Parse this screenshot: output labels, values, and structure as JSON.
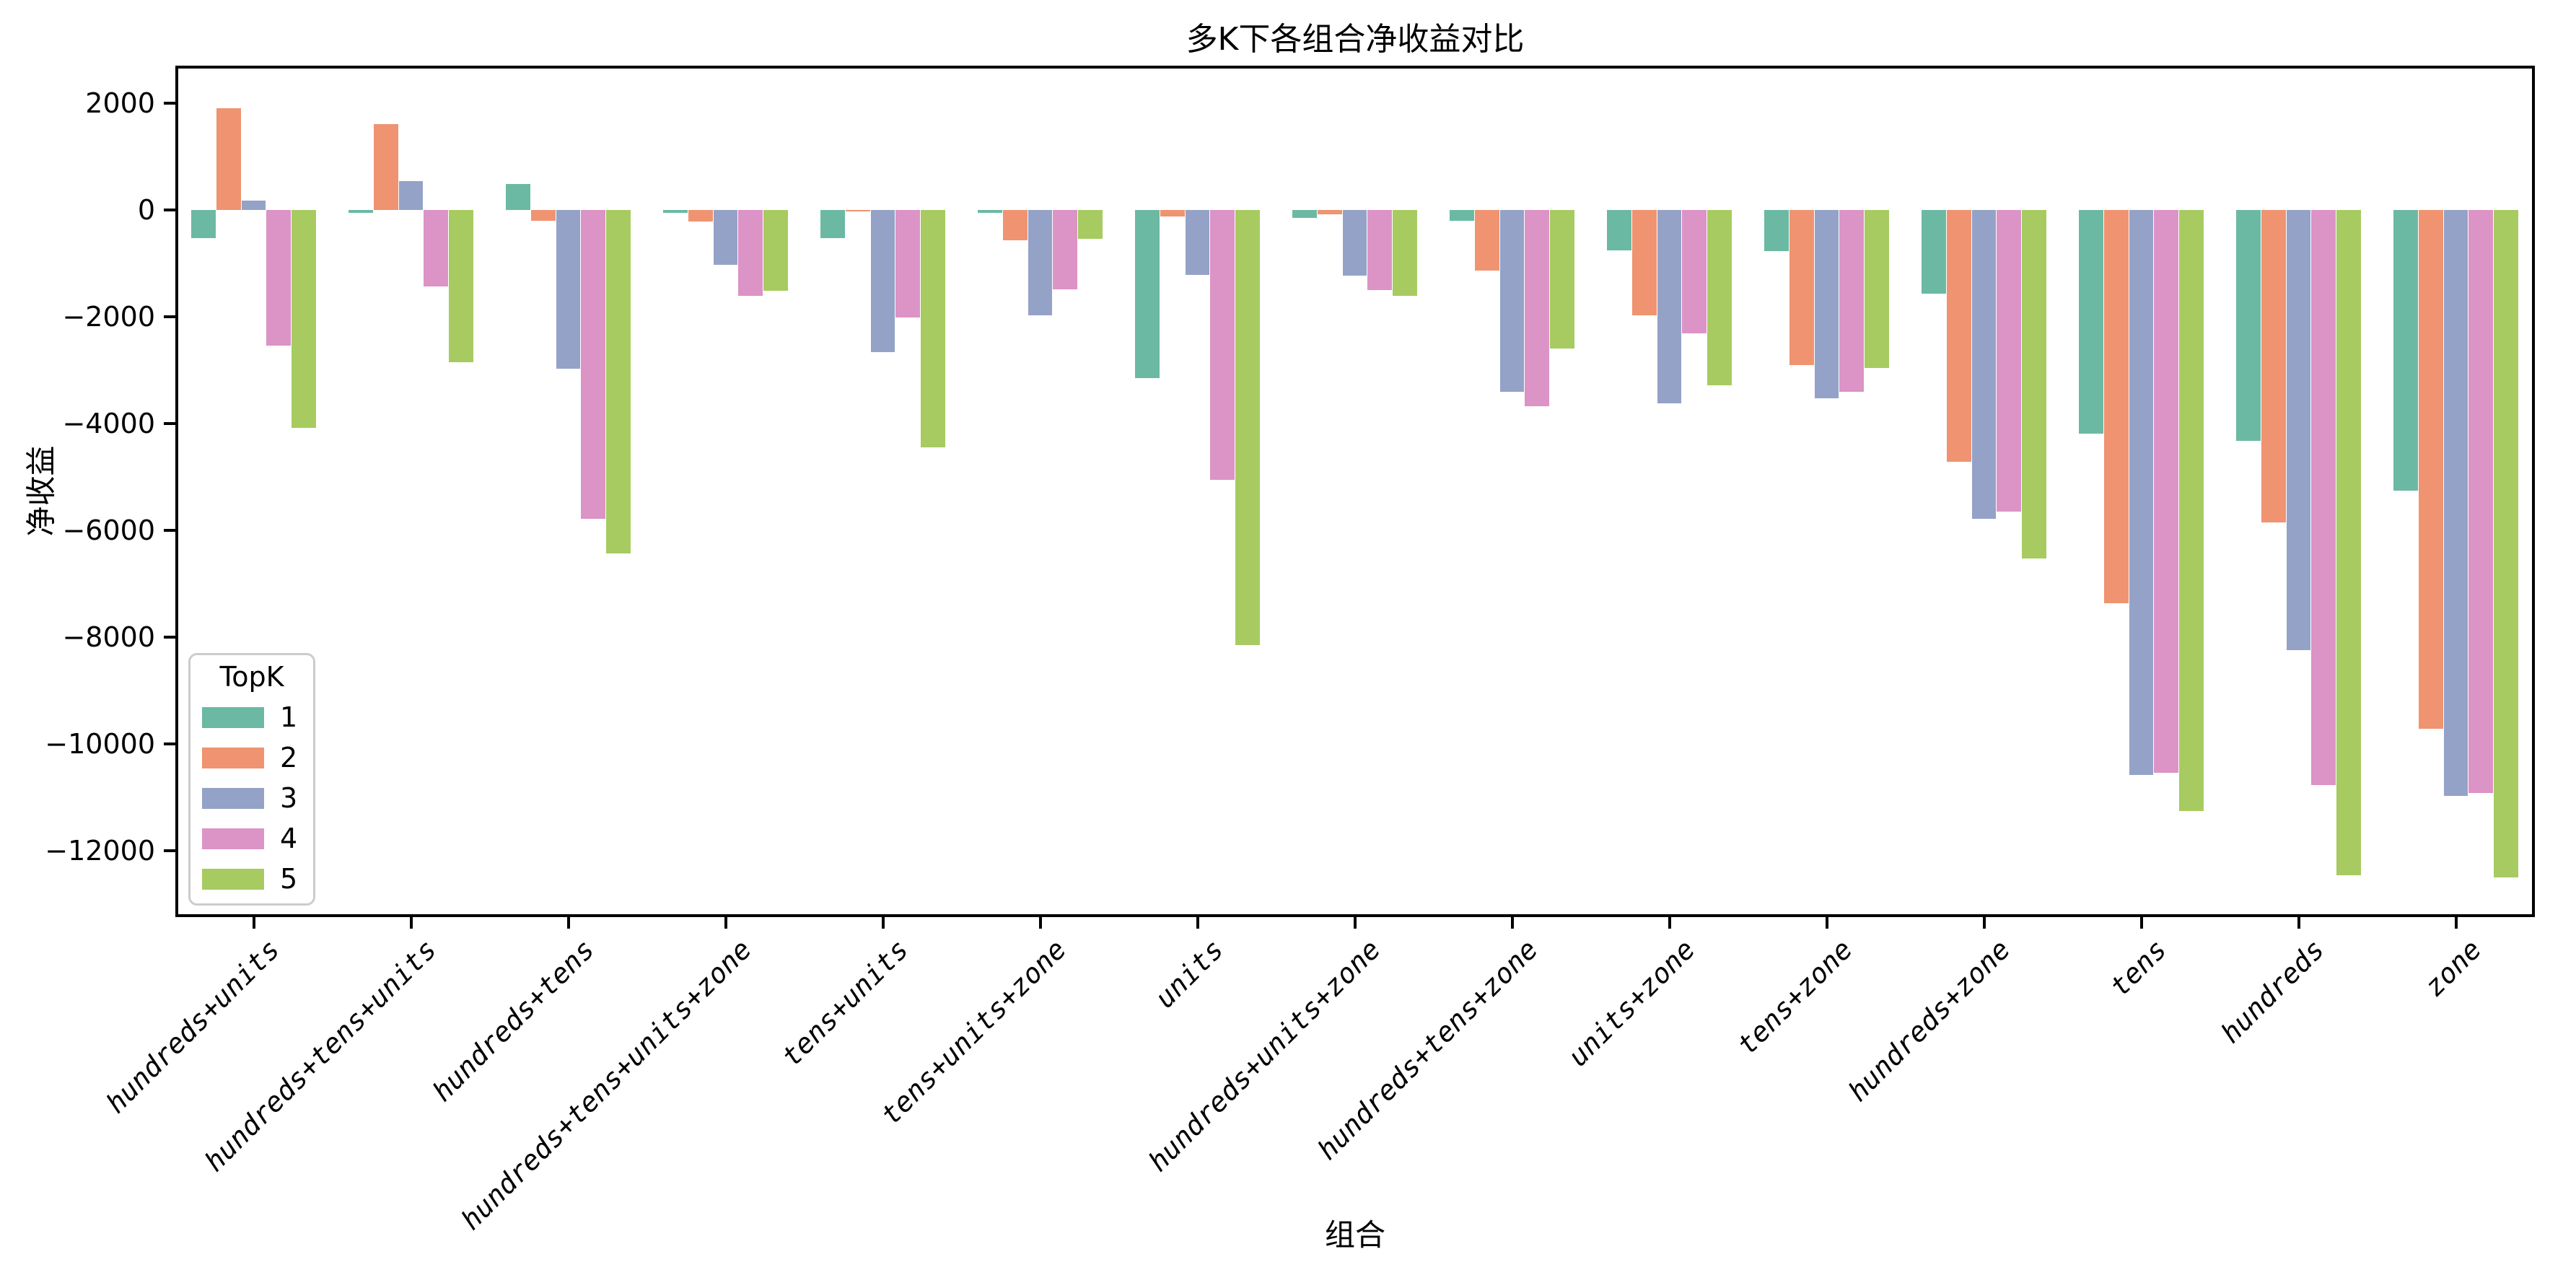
{
  "title": "多K下各组合净收益对比",
  "axes": {
    "x_label": "组合",
    "y_label": "净收益"
  },
  "legend": {
    "title": "TopK",
    "entries": [
      "1",
      "2",
      "3",
      "4",
      "5"
    ]
  },
  "chart_data": {
    "type": "bar",
    "title": "多K下各组合净收益对比",
    "xlabel": "组合",
    "ylabel": "净收益",
    "grid": false,
    "legend_position": "lower left",
    "ylim": [
      -13240,
      2700
    ],
    "yticks": [
      2000,
      0,
      -2000,
      -4000,
      -6000,
      -8000,
      -10000,
      -12000
    ],
    "categories": [
      "hundreds+units",
      "hundreds+tens+units",
      "hundreds+tens",
      "hundreds+tens+units+zone",
      "tens+units",
      "tens+units+zone",
      "units",
      "hundreds+units+zone",
      "hundreds+tens+zone",
      "units+zone",
      "tens+zone",
      "hundreds+zone",
      "tens",
      "hundreds",
      "zone"
    ],
    "series": [
      {
        "name": "1",
        "color": "#6cb9a3",
        "values": [
          -530,
          -60,
          480,
          -50,
          -530,
          -60,
          -3150,
          -150,
          -200,
          -760,
          -770,
          -1570,
          -4190,
          -4320,
          -5250
        ]
      },
      {
        "name": "2",
        "color": "#ef9371",
        "values": [
          1900,
          1600,
          -200,
          -220,
          -30,
          -570,
          -120,
          -80,
          -1140,
          -1970,
          -2910,
          -4710,
          -7370,
          -5850,
          -9710
        ]
      },
      {
        "name": "3",
        "color": "#94a2c7",
        "values": [
          180,
          540,
          -2980,
          -1030,
          -2660,
          -1980,
          -1220,
          -1230,
          -3410,
          -3620,
          -3530,
          -5780,
          -10580,
          -8240,
          -10970
        ]
      },
      {
        "name": "4",
        "color": "#dc93c6",
        "values": [
          -2540,
          -1430,
          -5790,
          -1610,
          -2020,
          -1490,
          -5050,
          -1500,
          -3670,
          -2310,
          -3410,
          -5650,
          -10540,
          -10770,
          -10920
        ]
      },
      {
        "name": "5",
        "color": "#a7cb61",
        "values": [
          -4080,
          -2850,
          -6430,
          -1520,
          -4450,
          -540,
          -8150,
          -1610,
          -2600,
          -3280,
          -2960,
          -6530,
          -11260,
          -12460,
          -12500
        ]
      }
    ]
  }
}
